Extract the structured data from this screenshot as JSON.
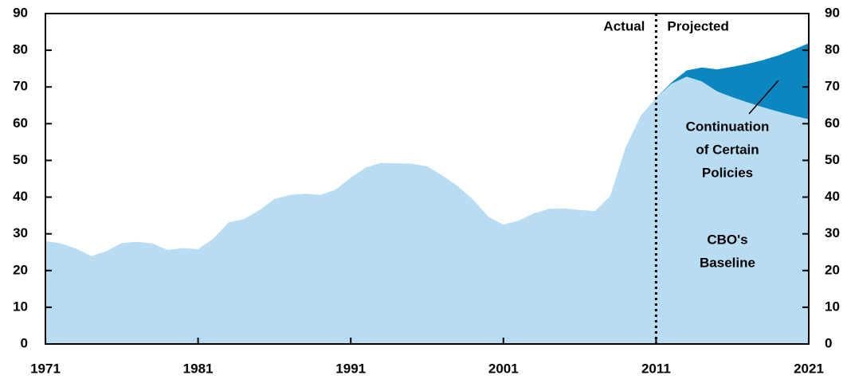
{
  "chart_data": {
    "type": "area",
    "x": [
      1971,
      1972,
      1973,
      1974,
      1975,
      1976,
      1977,
      1978,
      1979,
      1980,
      1981,
      1982,
      1983,
      1984,
      1985,
      1986,
      1987,
      1988,
      1989,
      1990,
      1991,
      1992,
      1993,
      1994,
      1995,
      1996,
      1997,
      1998,
      1999,
      2000,
      2001,
      2002,
      2003,
      2004,
      2005,
      2006,
      2007,
      2008,
      2009,
      2010,
      2011,
      2012,
      2013,
      2014,
      2015,
      2016,
      2017,
      2018,
      2019,
      2020,
      2021
    ],
    "series": [
      {
        "name": "Continuation of Certain Policies",
        "color": "#0a87c0",
        "values": [
          null,
          null,
          null,
          null,
          null,
          null,
          null,
          null,
          null,
          null,
          null,
          null,
          null,
          null,
          null,
          null,
          null,
          null,
          null,
          null,
          null,
          null,
          null,
          null,
          null,
          null,
          null,
          null,
          null,
          null,
          null,
          null,
          null,
          null,
          null,
          null,
          null,
          null,
          null,
          null,
          67.0,
          71.2,
          74.5,
          75.3,
          74.8,
          75.5,
          76.3,
          77.3,
          78.6,
          80.2,
          81.9
        ]
      },
      {
        "name": "CBO's Baseline",
        "color": "#b8dcf2",
        "values": [
          28.0,
          27.4,
          26.0,
          23.9,
          25.3,
          27.5,
          27.8,
          27.4,
          25.6,
          26.1,
          25.8,
          28.7,
          33.1,
          34.0,
          36.4,
          39.5,
          40.6,
          40.9,
          40.6,
          42.0,
          45.3,
          48.1,
          49.3,
          49.2,
          49.1,
          48.4,
          45.9,
          43.0,
          39.4,
          34.7,
          32.5,
          33.6,
          35.6,
          36.8,
          36.9,
          36.5,
          36.2,
          40.3,
          53.5,
          62.2,
          67.0,
          70.9,
          72.8,
          71.5,
          68.8,
          67.2,
          65.8,
          64.5,
          63.3,
          62.2,
          61.2
        ]
      }
    ],
    "series_labels": [
      [
        "Continuation",
        "of Certain",
        "Policies"
      ],
      [
        "CBO's",
        "Baseline"
      ]
    ],
    "projection_start": 2011,
    "annotations": [
      "Actual",
      "Projected"
    ],
    "xlim": [
      1971,
      2021
    ],
    "xticks": [
      1971,
      1981,
      1991,
      2001,
      2011,
      2021
    ],
    "ylim": [
      0,
      90
    ],
    "yticks": [
      0,
      10,
      20,
      30,
      40,
      50,
      60,
      70,
      80,
      90
    ],
    "y2lim": [
      0,
      90
    ],
    "y2ticks": [
      0,
      10,
      20,
      30,
      40,
      50,
      60,
      70,
      80,
      90
    ]
  }
}
